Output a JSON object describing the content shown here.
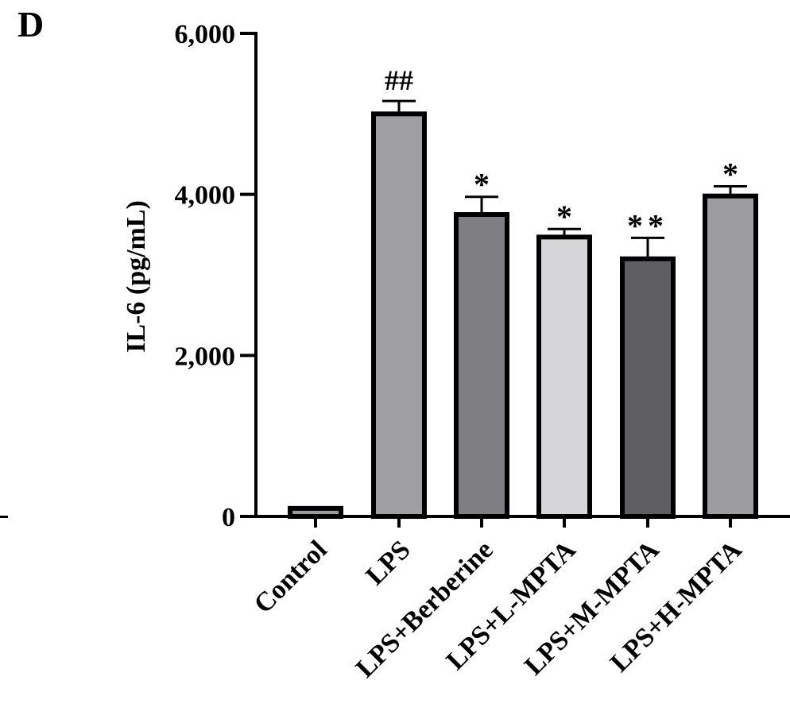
{
  "panel_label": "D",
  "chart_data": {
    "type": "bar",
    "ylabel": "IL-6 (pg/mL)",
    "xlabel": "",
    "ylim": [
      0,
      6000
    ],
    "yticks": [
      0,
      2000,
      4000,
      6000
    ],
    "ytick_labels": [
      "0",
      "2,000",
      "4,000",
      "6,000"
    ],
    "grid": false,
    "categories": [
      "Control",
      "LPS",
      "LPS+Berberine",
      "LPS+L-MPTA",
      "LPS+M-MPTA",
      "LPS+H-MPTA"
    ],
    "values": [
      100,
      5000,
      3750,
      3470,
      3200,
      3980
    ],
    "errors": [
      0,
      160,
      220,
      100,
      260,
      120
    ],
    "annotations": [
      "",
      "##",
      "*",
      "*",
      "**",
      "*"
    ],
    "colors": [
      "#9a9aa0",
      "#9e9ea3",
      "#7f7f83",
      "#d6d6d8",
      "#5f5f62",
      "#9d9da1"
    ]
  }
}
